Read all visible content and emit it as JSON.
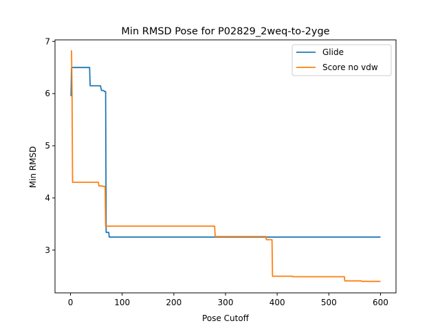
{
  "chart_data": {
    "type": "line",
    "title": "Min RMSD Pose for P02829_2weq-to-2yge",
    "xlabel": "Pose Cutoff",
    "ylabel": "Min RMSD",
    "xlim": [
      -30,
      630
    ],
    "ylim": [
      2.18,
      7.03
    ],
    "xticks": [
      0,
      100,
      200,
      300,
      400,
      500,
      600
    ],
    "yticks": [
      3,
      4,
      5,
      6,
      7
    ],
    "grid": false,
    "legend_position": "top-right",
    "series": [
      {
        "name": "Glide",
        "color": "#1f77b4",
        "x": [
          1,
          2,
          37,
          38,
          58,
          60,
          64,
          66,
          68,
          69,
          70,
          74,
          75,
          600
        ],
        "y": [
          5.95,
          6.5,
          6.5,
          6.15,
          6.15,
          6.06,
          6.06,
          6.04,
          6.04,
          3.34,
          3.34,
          3.34,
          3.25,
          3.25
        ]
      },
      {
        "name": "Score no vdw",
        "color": "#ff7f0e",
        "x": [
          1,
          2,
          3,
          4,
          54,
          55,
          62,
          63,
          67,
          68,
          69,
          279,
          280,
          378,
          379,
          390,
          391,
          430,
          431,
          530,
          531,
          563,
          564,
          600
        ],
        "y": [
          6.82,
          6.82,
          6.0,
          4.3,
          4.3,
          4.23,
          4.23,
          4.22,
          4.22,
          3.45,
          3.46,
          3.46,
          3.26,
          3.26,
          3.2,
          3.2,
          2.5,
          2.5,
          2.49,
          2.49,
          2.41,
          2.41,
          2.4,
          2.4
        ]
      }
    ]
  }
}
